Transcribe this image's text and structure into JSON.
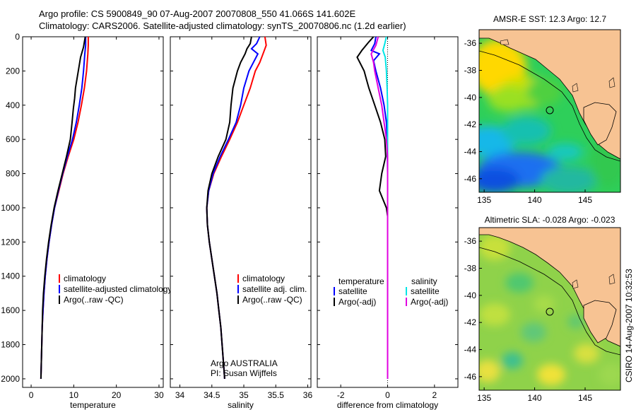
{
  "header": {
    "line1": "Argo profile: CS 5900849_90 07-Aug-2007 20070808_550 41.066S 141.602E",
    "line2": "Climatology: CARS2006. Satellite-adjusted climatology: synTS_20070806.nc (1.2d earlier)"
  },
  "colors": {
    "climatology": "#ff0000",
    "satellite": "#0000ff",
    "argo": "#000000",
    "satellite_salinity": "#00e5e5",
    "argo_adj_salinity": "#e000e0",
    "land": "#f7c393"
  },
  "attribution": {
    "argo": "Argo AUSTRALIA",
    "pi": "PI: Susan Wijffels",
    "csiro": "CSIRO 14-Aug-2007 10:32:53"
  },
  "chart_data": [
    {
      "type": "line",
      "name": "temperature-profile",
      "xlabel": "temperature",
      "ylabel": "",
      "xlim": [
        -2,
        31
      ],
      "ylim": [
        2050,
        0
      ],
      "xticks": [
        0,
        10,
        20,
        30
      ],
      "yticks": [
        0,
        200,
        400,
        600,
        800,
        1000,
        1200,
        1400,
        1600,
        1800,
        2000
      ],
      "legend": [
        "climatology",
        "satellite-adjusted climatology",
        "Argo(..raw -QC)"
      ],
      "legend_position": "lower-middle",
      "series": [
        {
          "name": "climatology",
          "color": "#ff0000",
          "points": [
            [
              13.4,
              0
            ],
            [
              13.4,
              50
            ],
            [
              13.3,
              100
            ],
            [
              13.0,
              200
            ],
            [
              12.5,
              300
            ],
            [
              11.8,
              400
            ],
            [
              11.0,
              500
            ],
            [
              10.0,
              600
            ],
            [
              8.7,
              700
            ],
            [
              7.5,
              800
            ],
            [
              6.5,
              900
            ],
            [
              5.5,
              1000
            ],
            [
              4.8,
              1100
            ],
            [
              4.2,
              1200
            ],
            [
              3.7,
              1300
            ],
            [
              3.3,
              1400
            ],
            [
              3.0,
              1500
            ],
            [
              2.8,
              1600
            ],
            [
              2.6,
              1700
            ],
            [
              2.5,
              1800
            ],
            [
              2.4,
              1900
            ],
            [
              2.3,
              2000
            ]
          ]
        },
        {
          "name": "satellite-adjusted climatology",
          "color": "#0000ff",
          "points": [
            [
              12.8,
              0
            ],
            [
              12.8,
              50
            ],
            [
              12.6,
              100
            ],
            [
              12.3,
              200
            ],
            [
              11.9,
              300
            ],
            [
              11.3,
              400
            ],
            [
              10.6,
              500
            ],
            [
              9.7,
              600
            ],
            [
              8.5,
              700
            ],
            [
              7.4,
              800
            ],
            [
              6.4,
              900
            ],
            [
              5.5,
              1000
            ],
            [
              4.8,
              1100
            ],
            [
              4.2,
              1200
            ],
            [
              3.7,
              1300
            ],
            [
              3.3,
              1400
            ],
            [
              3.0,
              1500
            ],
            [
              2.8,
              1600
            ],
            [
              2.6,
              1700
            ],
            [
              2.5,
              1800
            ],
            [
              2.4,
              1900
            ],
            [
              2.3,
              2000
            ]
          ]
        },
        {
          "name": "Argo(..raw -QC)",
          "color": "#000000",
          "points": [
            [
              12.7,
              0
            ],
            [
              12.3,
              60
            ],
            [
              11.6,
              120
            ],
            [
              11.2,
              180
            ],
            [
              10.8,
              240
            ],
            [
              10.4,
              300
            ],
            [
              10.2,
              360
            ],
            [
              9.9,
              420
            ],
            [
              9.6,
              500
            ],
            [
              9.2,
              600
            ],
            [
              8.3,
              700
            ],
            [
              7.3,
              800
            ],
            [
              6.3,
              900
            ],
            [
              5.4,
              1000
            ],
            [
              4.7,
              1100
            ],
            [
              4.1,
              1200
            ],
            [
              3.6,
              1300
            ],
            [
              3.2,
              1400
            ],
            [
              2.9,
              1500
            ],
            [
              2.7,
              1600
            ],
            [
              2.6,
              1700
            ],
            [
              2.5,
              1800
            ],
            [
              2.4,
              1900
            ],
            [
              2.3,
              2000
            ]
          ]
        }
      ]
    },
    {
      "type": "line",
      "name": "salinity-profile",
      "xlabel": "salinity",
      "ylabel": "",
      "xlim": [
        33.85,
        36.05
      ],
      "ylim": [
        2050,
        0
      ],
      "xticks": [
        34,
        34.5,
        35,
        35.5,
        36
      ],
      "legend": [
        "climatology",
        "satellite adj. clim.",
        "Argo(..raw -QC)"
      ],
      "legend_position": "lower-middle",
      "series": [
        {
          "name": "climatology",
          "color": "#ff0000",
          "points": [
            [
              35.33,
              0
            ],
            [
              35.35,
              50
            ],
            [
              35.3,
              100
            ],
            [
              35.25,
              150
            ],
            [
              35.18,
              200
            ],
            [
              35.1,
              300
            ],
            [
              35.0,
              400
            ],
            [
              34.9,
              500
            ],
            [
              34.78,
              600
            ],
            [
              34.65,
              700
            ],
            [
              34.53,
              800
            ],
            [
              34.45,
              900
            ],
            [
              34.42,
              1000
            ],
            [
              34.43,
              1100
            ],
            [
              34.46,
              1200
            ],
            [
              34.5,
              1300
            ],
            [
              34.54,
              1400
            ],
            [
              34.58,
              1500
            ],
            [
              34.61,
              1600
            ],
            [
              34.64,
              1700
            ],
            [
              34.66,
              1800
            ],
            [
              34.68,
              1900
            ],
            [
              34.7,
              2000
            ]
          ]
        },
        {
          "name": "satellite adj. clim.",
          "color": "#0000ff",
          "points": [
            [
              35.25,
              0
            ],
            [
              35.2,
              40
            ],
            [
              35.12,
              70
            ],
            [
              35.22,
              100
            ],
            [
              35.15,
              150
            ],
            [
              35.08,
              200
            ],
            [
              35.0,
              300
            ],
            [
              34.95,
              400
            ],
            [
              34.88,
              500
            ],
            [
              34.76,
              600
            ],
            [
              34.63,
              700
            ],
            [
              34.52,
              800
            ],
            [
              34.45,
              900
            ],
            [
              34.42,
              1000
            ],
            [
              34.43,
              1100
            ],
            [
              34.46,
              1200
            ],
            [
              34.5,
              1300
            ],
            [
              34.54,
              1400
            ],
            [
              34.58,
              1500
            ],
            [
              34.61,
              1600
            ],
            [
              34.64,
              1700
            ],
            [
              34.66,
              1800
            ],
            [
              34.68,
              1900
            ],
            [
              34.7,
              2000
            ]
          ]
        },
        {
          "name": "Argo(..raw -QC)",
          "color": "#000000",
          "points": [
            [
              35.12,
              0
            ],
            [
              35.1,
              40
            ],
            [
              35.05,
              70
            ],
            [
              35.02,
              100
            ],
            [
              34.95,
              150
            ],
            [
              34.9,
              200
            ],
            [
              34.83,
              300
            ],
            [
              34.8,
              400
            ],
            [
              34.78,
              500
            ],
            [
              34.72,
              600
            ],
            [
              34.6,
              700
            ],
            [
              34.5,
              800
            ],
            [
              34.44,
              900
            ],
            [
              34.42,
              1000
            ],
            [
              34.43,
              1100
            ],
            [
              34.46,
              1200
            ],
            [
              34.5,
              1300
            ],
            [
              34.54,
              1400
            ],
            [
              34.58,
              1500
            ],
            [
              34.61,
              1600
            ],
            [
              34.64,
              1700
            ],
            [
              34.66,
              1800
            ],
            [
              34.68,
              1900
            ],
            [
              34.7,
              2000
            ]
          ]
        }
      ]
    },
    {
      "type": "line",
      "name": "difference-profile",
      "xlabel": "difference from climatology",
      "ylabel": "",
      "xlim": [
        -3,
        3
      ],
      "ylim": [
        2050,
        0
      ],
      "xticks": [
        -2,
        0,
        2
      ],
      "legend_headers": [
        "temperature",
        "salinity"
      ],
      "legend": [
        "satellite",
        "Argo(-adj)",
        "satellite",
        "Argo(-adj)"
      ],
      "legend_position": "lower-middle",
      "series": [
        {
          "name": "temperature satellite",
          "color": "#0000ff",
          "points": [
            [
              -0.5,
              0
            ],
            [
              -0.55,
              40
            ],
            [
              -0.7,
              80
            ],
            [
              -0.35,
              100
            ],
            [
              -0.6,
              140
            ],
            [
              -0.5,
              200
            ],
            [
              -0.3,
              300
            ],
            [
              -0.15,
              400
            ],
            [
              -0.05,
              500
            ],
            [
              -0.02,
              600
            ],
            [
              -0.01,
              700
            ],
            [
              0,
              800
            ],
            [
              0,
              1000
            ],
            [
              0,
              2000
            ]
          ]
        },
        {
          "name": "temperature Argo(-adj)",
          "color": "#000000",
          "points": [
            [
              -0.6,
              0
            ],
            [
              -0.8,
              30
            ],
            [
              -1.1,
              80
            ],
            [
              -1.3,
              120
            ],
            [
              -1.0,
              200
            ],
            [
              -0.9,
              250
            ],
            [
              -0.8,
              300
            ],
            [
              -0.55,
              400
            ],
            [
              -0.3,
              500
            ],
            [
              -0.12,
              600
            ],
            [
              -0.08,
              700
            ],
            [
              -0.25,
              800
            ],
            [
              -0.35,
              900
            ],
            [
              -0.05,
              1000
            ],
            [
              0,
              1050
            ],
            [
              0,
              2000
            ]
          ]
        },
        {
          "name": "salinity satellite",
          "color": "#00e5e5",
          "points": [
            [
              -0.05,
              0
            ],
            [
              -0.12,
              40
            ],
            [
              -0.2,
              80
            ],
            [
              -0.1,
              120
            ],
            [
              -0.05,
              200
            ],
            [
              -0.02,
              300
            ],
            [
              0,
              400
            ],
            [
              0,
              2000
            ]
          ]
        },
        {
          "name": "salinity Argo(-adj)",
          "color": "#e000e0",
          "points": [
            [
              -0.4,
              0
            ],
            [
              -0.5,
              50
            ],
            [
              -0.7,
              100
            ],
            [
              -0.6,
              150
            ],
            [
              -0.55,
              200
            ],
            [
              -0.4,
              300
            ],
            [
              -0.25,
              400
            ],
            [
              -0.15,
              500
            ],
            [
              -0.05,
              600
            ],
            [
              0,
              700
            ],
            [
              0,
              2000
            ]
          ]
        }
      ],
      "zero_line": 0
    },
    {
      "type": "heatmap",
      "name": "amsr-sst-map",
      "title": "AMSR-E SST: 12.3 Argo: 12.7",
      "xticks": [
        135,
        140,
        145
      ],
      "yticks": [
        -36,
        -38,
        -40,
        -42,
        -44,
        -46
      ],
      "xlim": [
        134.5,
        148.5
      ],
      "ylim": [
        -47,
        -35
      ],
      "argo_position": [
        141.602,
        -41.066
      ]
    },
    {
      "type": "heatmap",
      "name": "altimetric-sla-map",
      "title": "Altimetric SLA: -0.028 Argo: -0.023",
      "xticks": [
        135,
        140,
        145
      ],
      "yticks": [
        -36,
        -38,
        -40,
        -42,
        -44,
        -46
      ],
      "xlim": [
        134.5,
        148.5
      ],
      "ylim": [
        -47,
        -35
      ],
      "argo_position": [
        141.602,
        -41.066
      ]
    }
  ]
}
